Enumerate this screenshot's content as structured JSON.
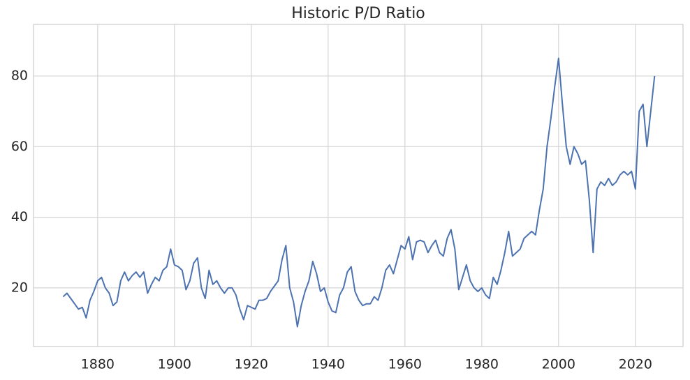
{
  "chart_data": {
    "type": "line",
    "title": "Historic P/D Ratio",
    "x": [
      1871,
      1872,
      1873,
      1874,
      1875,
      1876,
      1877,
      1878,
      1879,
      1880,
      1881,
      1882,
      1883,
      1884,
      1885,
      1886,
      1887,
      1888,
      1889,
      1890,
      1891,
      1892,
      1893,
      1894,
      1895,
      1896,
      1897,
      1898,
      1899,
      1900,
      1901,
      1902,
      1903,
      1904,
      1905,
      1906,
      1907,
      1908,
      1909,
      1910,
      1911,
      1912,
      1913,
      1914,
      1915,
      1916,
      1917,
      1918,
      1919,
      1920,
      1921,
      1922,
      1923,
      1924,
      1925,
      1926,
      1927,
      1928,
      1929,
      1930,
      1931,
      1932,
      1933,
      1934,
      1935,
      1936,
      1937,
      1938,
      1939,
      1940,
      1941,
      1942,
      1943,
      1944,
      1945,
      1946,
      1947,
      1948,
      1949,
      1950,
      1951,
      1952,
      1953,
      1954,
      1955,
      1956,
      1957,
      1958,
      1959,
      1960,
      1961,
      1962,
      1963,
      1964,
      1965,
      1966,
      1967,
      1968,
      1969,
      1970,
      1971,
      1972,
      1973,
      1974,
      1975,
      1976,
      1977,
      1978,
      1979,
      1980,
      1981,
      1982,
      1983,
      1984,
      1985,
      1986,
      1987,
      1988,
      1989,
      1990,
      1991,
      1992,
      1993,
      1994,
      1995,
      1996,
      1997,
      1998,
      1999,
      2000,
      2001,
      2002,
      2003,
      2004,
      2005,
      2006,
      2007,
      2008,
      2009,
      2010,
      2011,
      2012,
      2013,
      2014,
      2015,
      2016,
      2017,
      2018,
      2019,
      2020,
      2021,
      2022,
      2023,
      2024,
      2025
    ],
    "series": [
      {
        "name": "P/D Ratio",
        "color": "#4c72b0",
        "values": [
          17.5,
          18.5,
          17,
          15.5,
          14,
          14.5,
          11.5,
          16.5,
          19,
          22,
          23,
          20,
          18.5,
          15,
          16,
          22,
          24.5,
          22,
          23.5,
          24.5,
          23,
          24.5,
          18.5,
          21,
          23,
          22,
          25,
          26,
          31,
          26.5,
          26,
          25,
          19.5,
          22,
          27,
          28.5,
          20,
          17,
          25,
          21,
          22,
          20,
          18.5,
          20,
          20,
          18,
          14,
          11,
          15,
          14.5,
          14,
          16.5,
          16.5,
          17,
          19,
          20.5,
          22,
          28,
          32,
          20,
          16,
          9,
          15,
          19,
          22,
          27.5,
          24,
          19,
          20,
          16,
          13.5,
          13,
          18,
          20,
          24.5,
          26,
          19,
          16.5,
          15,
          15.5,
          15.5,
          17.5,
          16.5,
          20,
          25,
          26.5,
          24,
          28,
          32,
          31,
          34.5,
          28,
          33,
          33.5,
          33,
          30,
          32,
          33.5,
          30,
          29,
          34,
          36.5,
          31,
          19.5,
          23,
          26.5,
          22,
          20,
          19,
          20,
          18,
          17,
          23,
          21,
          25,
          30,
          36,
          29,
          30,
          31,
          34,
          35,
          36,
          35,
          42,
          48,
          60,
          68,
          77,
          85,
          72,
          60,
          55,
          60,
          58,
          55,
          56,
          45,
          30,
          48,
          50,
          49,
          51,
          49,
          50,
          52,
          53,
          52,
          53,
          48,
          70,
          72,
          60,
          70,
          80
        ]
      }
    ],
    "xlim": [
      1863.3,
      2032.4
    ],
    "xticks": [
      1880,
      1900,
      1920,
      1940,
      1960,
      1980,
      2000,
      2020
    ],
    "ylim": [
      3.4,
      94.6
    ],
    "yticks": [
      20,
      40,
      60,
      80
    ],
    "grid": true
  }
}
